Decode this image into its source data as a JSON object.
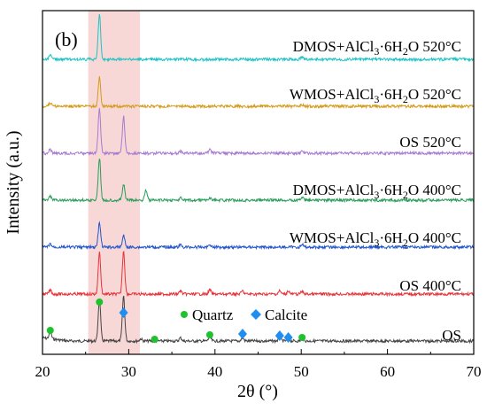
{
  "chart_data": {
    "type": "line",
    "panel_label": "(b)",
    "xlabel": "2θ (°)",
    "ylabel": "Intensity (a.u.)",
    "xlim": [
      20,
      70
    ],
    "x_ticks": [
      20,
      30,
      40,
      50,
      60,
      70
    ],
    "y_ticks_shown": false,
    "grid": false,
    "highlight_band": {
      "x_range": [
        25.3,
        31.3
      ],
      "color": "#f8d7d7"
    },
    "legend": {
      "entries": [
        {
          "label": "Quartz",
          "marker": "circle",
          "color": "#1ec22c"
        },
        {
          "label": "Calcite",
          "marker": "diamond",
          "color": "#1f8ef0"
        }
      ]
    },
    "series": [
      {
        "name": "OS",
        "color": "#444444",
        "offset": 0,
        "peaks": [
          [
            20.9,
            12
          ],
          [
            26.6,
            78
          ],
          [
            29.4,
            85
          ],
          [
            31.4,
            4
          ],
          [
            36.0,
            6
          ],
          [
            39.4,
            8
          ],
          [
            43.2,
            6
          ],
          [
            47.5,
            6
          ],
          [
            48.5,
            6
          ],
          [
            50.1,
            5
          ]
        ]
      },
      {
        "name": "OS 400°C",
        "color": "#e8333a",
        "offset": 1,
        "peaks": [
          [
            20.9,
            8
          ],
          [
            26.6,
            78
          ],
          [
            29.4,
            82
          ],
          [
            36.0,
            6
          ],
          [
            39.4,
            8
          ],
          [
            43.2,
            6
          ],
          [
            47.5,
            6
          ],
          [
            48.5,
            6
          ],
          [
            50.1,
            5
          ]
        ]
      },
      {
        "name": "WMOS+AlCl3·6H2O 400°C",
        "color": "#2255cc",
        "offset": 2,
        "peaks": [
          [
            20.9,
            6
          ],
          [
            26.6,
            45
          ],
          [
            29.4,
            22
          ],
          [
            36.0,
            4
          ],
          [
            39.4,
            5
          ],
          [
            50.1,
            5
          ]
        ]
      },
      {
        "name": "DMOS+AlCl3·6H2O 400°C",
        "color": "#2a9d5c",
        "offset": 3,
        "peaks": [
          [
            20.9,
            8
          ],
          [
            26.6,
            80
          ],
          [
            29.4,
            30
          ],
          [
            32.0,
            20
          ],
          [
            36.0,
            4
          ],
          [
            39.4,
            5
          ],
          [
            50.1,
            6
          ]
        ]
      },
      {
        "name": "OS 520°C",
        "color": "#a87ad0",
        "offset": 4,
        "peaks": [
          [
            20.9,
            8
          ],
          [
            26.6,
            85
          ],
          [
            29.4,
            70
          ],
          [
            36.0,
            4
          ],
          [
            39.4,
            6
          ],
          [
            50.1,
            5
          ]
        ]
      },
      {
        "name": "WMOS+AlCl3·6H2O 520°C",
        "color": "#d49a1a",
        "offset": 5,
        "peaks": [
          [
            20.9,
            6
          ],
          [
            26.6,
            55
          ],
          [
            50.1,
            3
          ]
        ]
      },
      {
        "name": "DMOS+AlCl3·6H2O 520°C",
        "color": "#1fc2c2",
        "offset": 6,
        "peaks": [
          [
            20.9,
            8
          ],
          [
            26.6,
            85
          ],
          [
            50.1,
            4
          ]
        ]
      }
    ],
    "markers": [
      {
        "phase": "Quartz",
        "x": 20.9
      },
      {
        "phase": "Quartz",
        "x": 26.6
      },
      {
        "phase": "Calcite",
        "x": 29.4
      },
      {
        "phase": "Quartz",
        "x": 33.0
      },
      {
        "phase": "Quartz",
        "x": 39.4
      },
      {
        "phase": "Calcite",
        "x": 43.2
      },
      {
        "phase": "Calcite",
        "x": 47.5
      },
      {
        "phase": "Calcite",
        "x": 48.5
      },
      {
        "phase": "Quartz",
        "x": 50.1
      }
    ]
  }
}
